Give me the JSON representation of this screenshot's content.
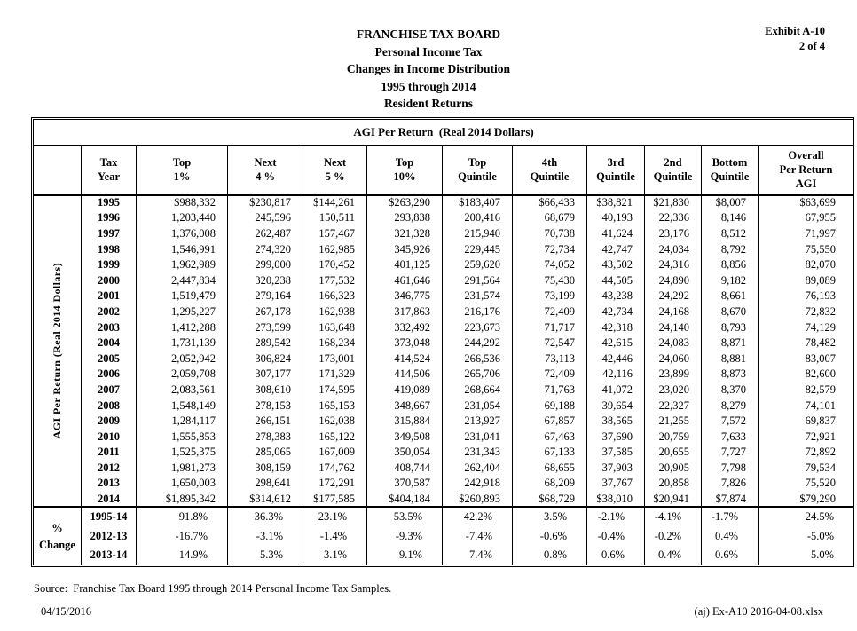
{
  "header": {
    "title_lines": [
      "FRANCHISE TAX BOARD",
      "Personal Income Tax",
      "Changes in Income Distribution",
      "1995 through 2014",
      "Resident Returns"
    ],
    "exhibit_line1": "Exhibit A-10",
    "exhibit_line2": "2 of 4"
  },
  "table": {
    "spanning_header": "AGI Per Return  (Real 2014 Dollars)",
    "side_label": "AGI Per Return (Real 2014 Dollars)",
    "pct_change_label": "%\nChange",
    "columns": [
      {
        "id": "tax-year",
        "lines": [
          "Tax",
          "Year"
        ]
      },
      {
        "id": "top-1pct",
        "lines": [
          "Top",
          "1%"
        ]
      },
      {
        "id": "next-4pct",
        "lines": [
          "Next",
          "4 %"
        ]
      },
      {
        "id": "next-5pct",
        "lines": [
          "Next",
          "5 %"
        ]
      },
      {
        "id": "top-10pct",
        "lines": [
          "Top",
          "10%"
        ]
      },
      {
        "id": "top-quintile",
        "lines": [
          "Top",
          "Quintile"
        ]
      },
      {
        "id": "4th-quintile",
        "lines": [
          "4th",
          "Quintile"
        ]
      },
      {
        "id": "3rd-quintile",
        "lines": [
          "3rd",
          "Quintile"
        ]
      },
      {
        "id": "2nd-quintile",
        "lines": [
          "2nd",
          "Quintile"
        ]
      },
      {
        "id": "bottom-quintile",
        "lines": [
          "Bottom",
          "Quintile"
        ]
      },
      {
        "id": "overall-agi",
        "lines": [
          "Overall",
          "Per Return",
          "AGI"
        ]
      }
    ],
    "rows": [
      {
        "year": "1995",
        "values": [
          "$988,332",
          "$230,817",
          "$144,261",
          "$263,290",
          "$183,407",
          "$66,433",
          "$38,821",
          "$21,830",
          "$8,007",
          "$63,699"
        ]
      },
      {
        "year": "1996",
        "values": [
          "1,203,440",
          "245,596",
          "150,511",
          "293,838",
          "200,416",
          "68,679",
          "40,193",
          "22,336",
          "8,146",
          "67,955"
        ]
      },
      {
        "year": "1997",
        "values": [
          "1,376,008",
          "262,487",
          "157,467",
          "321,328",
          "215,940",
          "70,738",
          "41,624",
          "23,176",
          "8,512",
          "71,997"
        ]
      },
      {
        "year": "1998",
        "values": [
          "1,546,991",
          "274,320",
          "162,985",
          "345,926",
          "229,445",
          "72,734",
          "42,747",
          "24,034",
          "8,792",
          "75,550"
        ]
      },
      {
        "year": "1999",
        "values": [
          "1,962,989",
          "299,000",
          "170,452",
          "401,125",
          "259,620",
          "74,052",
          "43,502",
          "24,316",
          "8,856",
          "82,070"
        ]
      },
      {
        "year": "2000",
        "values": [
          "2,447,834",
          "320,238",
          "177,532",
          "461,646",
          "291,564",
          "75,430",
          "44,505",
          "24,890",
          "9,182",
          "89,089"
        ]
      },
      {
        "year": "2001",
        "values": [
          "1,519,479",
          "279,164",
          "166,323",
          "346,775",
          "231,574",
          "73,199",
          "43,238",
          "24,292",
          "8,661",
          "76,193"
        ]
      },
      {
        "year": "2002",
        "values": [
          "1,295,227",
          "267,178",
          "162,938",
          "317,863",
          "216,176",
          "72,409",
          "42,734",
          "24,168",
          "8,670",
          "72,832"
        ]
      },
      {
        "year": "2003",
        "values": [
          "1,412,288",
          "273,599",
          "163,648",
          "332,492",
          "223,673",
          "71,717",
          "42,318",
          "24,140",
          "8,793",
          "74,129"
        ]
      },
      {
        "year": "2004",
        "values": [
          "1,731,139",
          "289,542",
          "168,234",
          "373,048",
          "244,292",
          "72,547",
          "42,615",
          "24,083",
          "8,871",
          "78,482"
        ]
      },
      {
        "year": "2005",
        "values": [
          "2,052,942",
          "306,824",
          "173,001",
          "414,524",
          "266,536",
          "73,113",
          "42,446",
          "24,060",
          "8,881",
          "83,007"
        ]
      },
      {
        "year": "2006",
        "values": [
          "2,059,708",
          "307,177",
          "171,329",
          "414,506",
          "265,706",
          "72,409",
          "42,116",
          "23,899",
          "8,873",
          "82,600"
        ]
      },
      {
        "year": "2007",
        "values": [
          "2,083,561",
          "308,610",
          "174,595",
          "419,089",
          "268,664",
          "71,763",
          "41,072",
          "23,020",
          "8,370",
          "82,579"
        ]
      },
      {
        "year": "2008",
        "values": [
          "1,548,149",
          "278,153",
          "165,153",
          "348,667",
          "231,054",
          "69,188",
          "39,654",
          "22,327",
          "8,279",
          "74,101"
        ]
      },
      {
        "year": "2009",
        "values": [
          "1,284,117",
          "266,151",
          "162,038",
          "315,884",
          "213,927",
          "67,857",
          "38,565",
          "21,255",
          "7,572",
          "69,837"
        ]
      },
      {
        "year": "2010",
        "values": [
          "1,555,853",
          "278,383",
          "165,122",
          "349,508",
          "231,041",
          "67,463",
          "37,690",
          "20,759",
          "7,633",
          "72,921"
        ]
      },
      {
        "year": "2011",
        "values": [
          "1,525,375",
          "285,065",
          "167,009",
          "350,054",
          "231,343",
          "67,133",
          "37,585",
          "20,655",
          "7,727",
          "72,892"
        ]
      },
      {
        "year": "2012",
        "values": [
          "1,981,273",
          "308,159",
          "174,762",
          "408,744",
          "262,404",
          "68,655",
          "37,903",
          "20,905",
          "7,798",
          "79,534"
        ]
      },
      {
        "year": "2013",
        "values": [
          "1,650,003",
          "298,641",
          "172,291",
          "370,587",
          "242,918",
          "68,209",
          "37,767",
          "20,858",
          "7,826",
          "75,520"
        ]
      },
      {
        "year": "2014",
        "values": [
          "$1,895,342",
          "$314,612",
          "$177,585",
          "$404,184",
          "$260,893",
          "$68,729",
          "$38,010",
          "$20,941",
          "$7,874",
          "$79,290"
        ]
      }
    ],
    "pct_rows": [
      {
        "label": "1995-14",
        "values": [
          "91.8%",
          "36.3%",
          "23.1%",
          "53.5%",
          "42.2%",
          "3.5%",
          "-2.1%",
          "-4.1%",
          "-1.7%",
          "24.5%"
        ]
      },
      {
        "label": "2012-13",
        "values": [
          "-16.7%",
          "-3.1%",
          "-1.4%",
          "-9.3%",
          "-7.4%",
          "-0.6%",
          "-0.4%",
          "-0.2%",
          "0.4%",
          "-5.0%"
        ]
      },
      {
        "label": "2013-14",
        "values": [
          "14.9%",
          "5.3%",
          "3.1%",
          "9.1%",
          "7.4%",
          "0.8%",
          "0.6%",
          "0.4%",
          "0.6%",
          "5.0%"
        ]
      }
    ]
  },
  "footer": {
    "source": "Source:  Franchise Tax Board 1995 through 2014 Personal Income Tax Samples.",
    "date": "04/15/2016",
    "file_ref": "(aj) Ex-A10 2016-04-08.xlsx"
  }
}
